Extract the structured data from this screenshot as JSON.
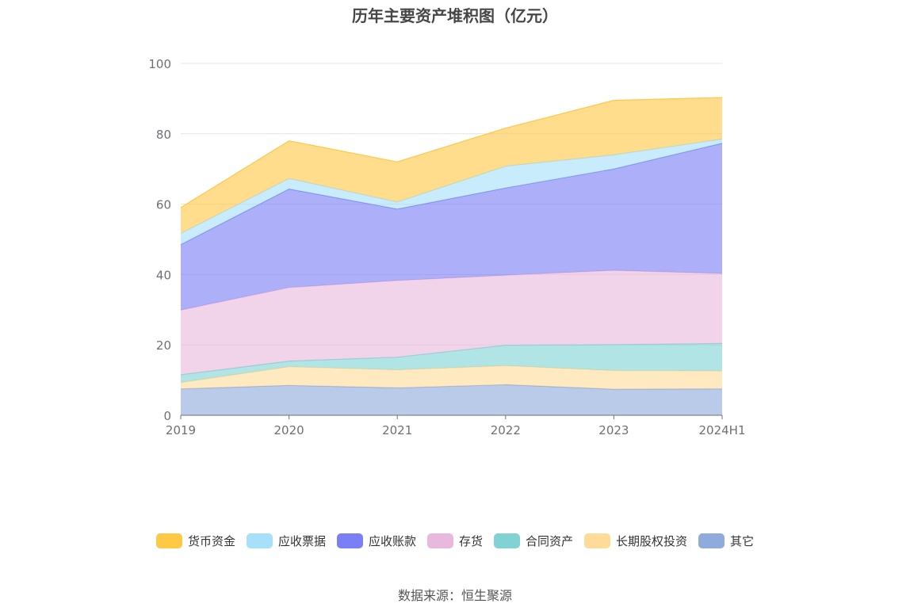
{
  "chart_data": {
    "type": "area",
    "stacked": true,
    "title": "历年主要资产堆积图（亿元）",
    "categories": [
      "2019",
      "2020",
      "2021",
      "2022",
      "2023",
      "2024H1"
    ],
    "ylim": [
      0,
      100
    ],
    "yticks": [
      0,
      20,
      40,
      60,
      80,
      100
    ],
    "grid": true,
    "legend_position": "bottom",
    "series": [
      {
        "name": "其它",
        "color": "#8FAADC",
        "values": [
          7.5,
          8.5,
          7.8,
          8.7,
          7.4,
          7.5
        ]
      },
      {
        "name": "长期股权投资",
        "color": "#FFDB9A",
        "values": [
          1.8,
          5.3,
          5.1,
          5.4,
          5.3,
          5.1
        ]
      },
      {
        "name": "合同资产",
        "color": "#81D3D3",
        "values": [
          2.2,
          1.6,
          3.6,
          5.8,
          7.4,
          7.8
        ]
      },
      {
        "name": "存货",
        "color": "#E8B9DC",
        "values": [
          18.4,
          20.9,
          21.8,
          19.9,
          21.1,
          19.9
        ]
      },
      {
        "name": "应收账款",
        "color": "#7B7FF5",
        "values": [
          18.6,
          28.0,
          20.3,
          24.8,
          28.8,
          37.0
        ]
      },
      {
        "name": "应收票据",
        "color": "#A6E0FA",
        "values": [
          3.2,
          3.0,
          2.0,
          6.2,
          4.0,
          1.2
        ]
      },
      {
        "name": "货币资金",
        "color": "#FFC845",
        "values": [
          7.3,
          10.7,
          11.4,
          10.8,
          15.5,
          11.8
        ]
      }
    ],
    "legend_order": [
      "货币资金",
      "应收票据",
      "应收账款",
      "存货",
      "合同资产",
      "长期股权投资",
      "其它"
    ]
  },
  "source": "数据来源：恒生聚源"
}
